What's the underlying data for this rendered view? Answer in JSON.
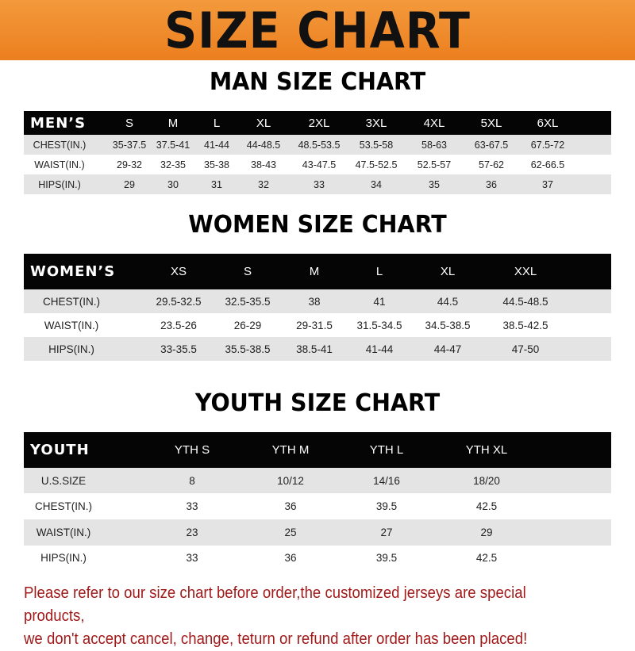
{
  "banner": {
    "title": "SIZE CHART",
    "color": "#ef8a2c"
  },
  "men": {
    "title": "MAN SIZE CHART",
    "header": [
      "MEN’S",
      "S",
      "M",
      "L",
      "XL",
      "2XL",
      "3XL",
      "4XL",
      "5XL",
      "6XL"
    ],
    "rows": [
      [
        "CHEST(IN.)",
        "35-37.5",
        "37.5-41",
        "41-44",
        "44-48.5",
        "48.5-53.5",
        "53.5-58",
        "58-63",
        "63-67.5",
        "67.5-72"
      ],
      [
        "WAIST(IN.)",
        "29-32",
        "32-35",
        "35-38",
        "38-43",
        "43-47.5",
        "47.5-52.5",
        "52.5-57",
        "57-62",
        "62-66.5"
      ],
      [
        "HIPS(IN.)",
        "29",
        "30",
        "31",
        "32",
        "33",
        "34",
        "35",
        "36",
        "37"
      ]
    ]
  },
  "women": {
    "title": "WOMEN SIZE CHART",
    "header": [
      "WOMEN’S",
      "XS",
      "S",
      "M",
      "L",
      "XL",
      "XXL"
    ],
    "rows": [
      [
        "CHEST(IN.)",
        "29.5-32.5",
        "32.5-35.5",
        "38",
        "41",
        "44.5",
        "44.5-48.5"
      ],
      [
        "WAIST(IN.)",
        "23.5-26",
        "26-29",
        "29-31.5",
        "31.5-34.5",
        "34.5-38.5",
        "38.5-42.5"
      ],
      [
        "HIPS(IN.)",
        "33-35.5",
        "35.5-38.5",
        "38.5-41",
        "41-44",
        "44-47",
        "47-50"
      ]
    ]
  },
  "youth": {
    "title": "YOUTH SIZE CHART",
    "header": [
      "YOUTH",
      "YTH S",
      "YTH M",
      "YTH L",
      "YTH XL"
    ],
    "rows": [
      [
        "U.S.SIZE",
        "8",
        "10/12",
        "14/16",
        "18/20"
      ],
      [
        "CHEST(IN.)",
        "33",
        "36",
        "39.5",
        "42.5"
      ],
      [
        "WAIST(IN.)",
        "23",
        "25",
        "27",
        "29"
      ],
      [
        "HIPS(IN.)",
        "33",
        "36",
        "39.5",
        "42.5"
      ]
    ]
  },
  "note": {
    "line1": "Please refer to our size chart before order,the customized jerseys are special products,",
    "line2": "we don't accept cancel, change, teturn or refund after order has been placed!",
    "color": "#a11a1a"
  }
}
